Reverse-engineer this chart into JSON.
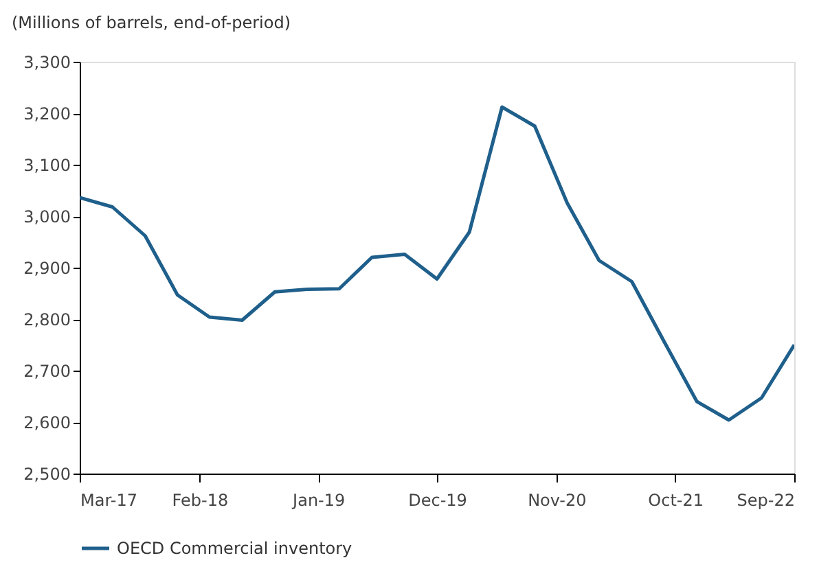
{
  "chart_data": {
    "type": "line",
    "ylabel": "(Millions of barrels, end-of-period)",
    "x": [
      "2017-03",
      "2017-06",
      "2017-09",
      "2017-12",
      "2018-03",
      "2018-06",
      "2018-09",
      "2018-12",
      "2019-03",
      "2019-06",
      "2019-09",
      "2019-12",
      "2020-03",
      "2020-06",
      "2020-09",
      "2020-12",
      "2021-03",
      "2021-06",
      "2021-09",
      "2021-12",
      "2022-03",
      "2022-06",
      "2022-09"
    ],
    "series": [
      {
        "name": "OECD Commercial inventory",
        "color": "#1f5f8b",
        "values": [
          3036,
          3018,
          2962,
          2847,
          2804,
          2798,
          2853,
          2858,
          2859,
          2920,
          2926,
          2878,
          2969,
          3212,
          3175,
          3026,
          2914,
          2873,
          2755,
          2640,
          2604,
          2647,
          2750
        ]
      }
    ],
    "xlim": [
      "2017-03",
      "2022-09"
    ],
    "xticks": [
      {
        "value": "2017-03",
        "label": "Mar-17"
      },
      {
        "value": "2018-02",
        "label": "Feb-18"
      },
      {
        "value": "2019-01",
        "label": "Jan-19"
      },
      {
        "value": "2019-12",
        "label": "Dec-19"
      },
      {
        "value": "2020-11",
        "label": "Nov-20"
      },
      {
        "value": "2021-10",
        "label": "Oct-21"
      },
      {
        "value": "2022-09",
        "label": "Sep-22"
      }
    ],
    "ylim": [
      2500,
      3300
    ],
    "yticks": [
      {
        "value": 2500,
        "label": "2,500"
      },
      {
        "value": 2600,
        "label": "2,600"
      },
      {
        "value": 2700,
        "label": "2,700"
      },
      {
        "value": 2800,
        "label": "2,800"
      },
      {
        "value": 2900,
        "label": "2,900"
      },
      {
        "value": 3000,
        "label": "3,000"
      },
      {
        "value": 3100,
        "label": "3,100"
      },
      {
        "value": 3200,
        "label": "3,200"
      },
      {
        "value": 3300,
        "label": "3,300"
      }
    ],
    "grid": false,
    "legend": "bottom",
    "marker": "none",
    "line_style": "solid"
  }
}
